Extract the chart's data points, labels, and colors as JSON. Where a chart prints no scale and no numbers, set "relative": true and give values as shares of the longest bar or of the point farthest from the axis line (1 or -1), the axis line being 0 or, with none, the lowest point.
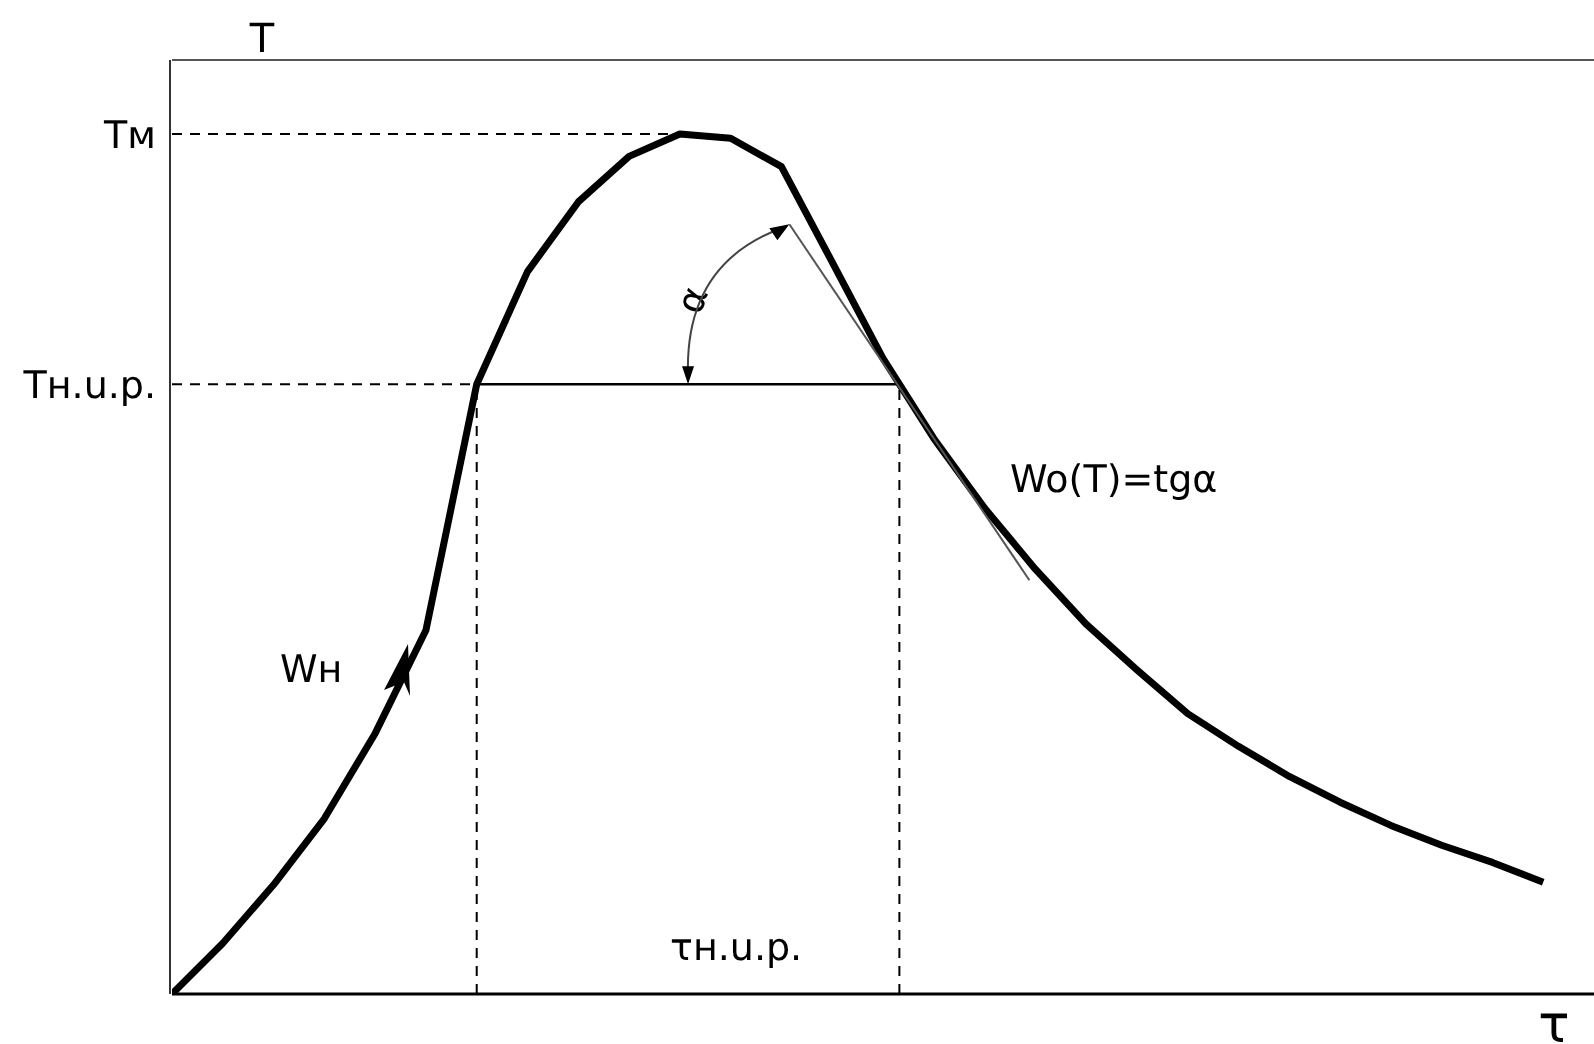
{
  "chart_data": {
    "type": "line",
    "relative": true,
    "xlabel": "τ",
    "ylabel": "T",
    "grid": false,
    "legend": false,
    "marker": "none",
    "line_style": "solid",
    "categories": [
      null,
      null,
      null,
      null,
      null,
      null,
      null,
      null,
      null,
      null,
      null,
      null,
      null,
      null,
      null,
      null,
      null,
      null,
      null,
      null,
      null,
      null,
      null,
      null,
      null,
      null,
      null,
      null
    ],
    "series": [
      {
        "color": "#000000",
        "values": [
          0,
          0.059,
          0.127,
          0.204,
          0.303,
          0.423,
          0.709,
          0.84,
          0.921,
          0.974,
          1,
          0.995,
          0.962,
          0.851,
          0.739,
          0.646,
          0.565,
          0.494,
          0.43,
          0.377,
          0.326,
          0.288,
          0.253,
          0.223,
          0.196,
          0.173,
          0.153,
          0.13
        ]
      }
    ],
    "ref_lines": [
      {
        "axis": "y",
        "value": 1,
        "label": "Tм",
        "line_style": "dashed",
        "color": "#000000"
      },
      {
        "axis": "y",
        "value": 0.709,
        "label": "Tн.u.p.",
        "line_style": "dashed",
        "color": "#000000"
      }
    ],
    "annotations": [
      "Wн",
      "α",
      "Wo(T)=tgα",
      "τн.u.p."
    ]
  }
}
